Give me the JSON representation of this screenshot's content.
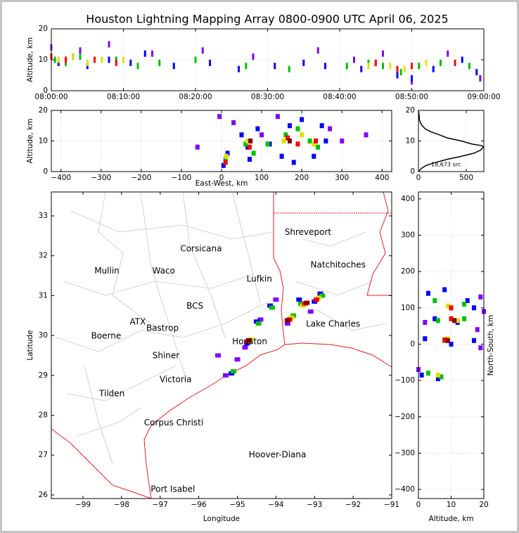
{
  "chart_data": [
    {
      "type": "scatter",
      "title": "Houston Lightning Mapping Array 0800-0900 UTC April 06, 2025",
      "ylabel": "Altitude, km",
      "xlim": [
        0,
        60
      ],
      "ylim": [
        0,
        20
      ],
      "xticks": [
        {
          "value": 0,
          "label": "08:00:00"
        },
        {
          "value": 10,
          "label": "08:10:00"
        },
        {
          "value": 20,
          "label": "08:20:00"
        },
        {
          "value": 30,
          "label": "08:30:00"
        },
        {
          "value": 40,
          "label": "08:40:00"
        },
        {
          "value": 50,
          "label": "08:50:00"
        },
        {
          "value": 60,
          "label": "09:00:00"
        }
      ],
      "yticks": [
        0,
        10,
        20
      ],
      "grid": true,
      "series": [
        {
          "color": "#8000ff",
          "x": [
            0,
            4,
            8,
            14,
            21,
            28,
            37,
            42,
            46,
            50,
            55,
            59.5
          ],
          "y": [
            14,
            13,
            15,
            12,
            13,
            11,
            13,
            10,
            12,
            3,
            12,
            4
          ]
        },
        {
          "color": "#0000ff",
          "x": [
            1,
            3,
            5,
            8,
            11,
            13,
            17,
            22,
            26,
            31,
            35,
            38,
            43,
            45,
            48,
            50,
            53,
            57,
            59
          ],
          "y": [
            9,
            11,
            8,
            10,
            9,
            12,
            8,
            9,
            7,
            8,
            9,
            8,
            7,
            9,
            5,
            4,
            7,
            10,
            6
          ]
        },
        {
          "color": "#00c000",
          "x": [
            0.5,
            2,
            4,
            6,
            9,
            12,
            15,
            20,
            27,
            33,
            41,
            44,
            46,
            48.5,
            51,
            54,
            58
          ],
          "y": [
            10,
            9,
            11,
            10,
            10,
            8,
            9,
            10,
            8,
            7,
            8,
            9,
            8,
            6,
            8,
            9,
            8
          ]
        },
        {
          "color": "#e0e000",
          "x": [
            1,
            3,
            5,
            7,
            10,
            44,
            47,
            49,
            52
          ],
          "y": [
            10,
            11,
            9,
            10,
            10,
            8,
            8,
            7,
            9
          ]
        },
        {
          "color": "#ff0000",
          "x": [
            0,
            2,
            6,
            9,
            45,
            48,
            50,
            56
          ],
          "y": [
            11,
            10,
            10,
            9,
            9,
            7,
            8,
            9
          ]
        }
      ]
    },
    {
      "type": "scatter",
      "xlabel": "East-West, km",
      "ylabel": "Altitude, km",
      "xlim": [
        -424,
        424
      ],
      "ylim": [
        0,
        20
      ],
      "xticks": [
        {
          "value": -400,
          "label": "−400"
        },
        {
          "value": -300,
          "label": "−300"
        },
        {
          "value": -200,
          "label": "−200"
        },
        {
          "value": -100,
          "label": "−100"
        },
        0,
        100,
        200,
        300,
        400
      ],
      "yticks": [
        0,
        10,
        20
      ],
      "grid": true,
      "series": [
        {
          "color": "#8000ff",
          "x": [
            -5,
            30,
            100,
            140,
            270,
            300,
            -60,
            360
          ],
          "y": [
            18,
            16,
            12,
            18,
            14,
            10,
            8,
            12
          ]
        },
        {
          "color": "#0000ff",
          "x": [
            5,
            15,
            50,
            70,
            90,
            120,
            150,
            170,
            200,
            230,
            250,
            260,
            180,
            65
          ],
          "y": [
            2,
            6,
            12,
            4,
            14,
            9,
            5,
            15,
            17,
            5,
            15,
            10,
            3,
            8
          ]
        },
        {
          "color": "#00c000",
          "x": [
            10,
            60,
            80,
            115,
            160,
            190,
            220,
            240
          ],
          "y": [
            4,
            9,
            6,
            9,
            12,
            14,
            10,
            8
          ]
        },
        {
          "color": "#e0e000",
          "x": [
            12,
            65,
            155,
            200,
            230
          ],
          "y": [
            5,
            10,
            10,
            12,
            9
          ]
        },
        {
          "color": "#ff0000",
          "x": [
            10,
            70,
            165,
            190,
            235
          ],
          "y": [
            3,
            8,
            11,
            9,
            10
          ]
        },
        {
          "color": "#800000",
          "x": [
            72,
            170
          ],
          "y": [
            10,
            10
          ]
        }
      ]
    },
    {
      "type": "line",
      "annotation": "18,673 src",
      "xlim": [
        0,
        684
      ],
      "ylim": [
        0,
        20
      ],
      "xticks": [
        0,
        500
      ],
      "yticks": [
        0,
        10,
        20
      ],
      "grid": true,
      "color": "#000000",
      "x": [
        0,
        30,
        80,
        180,
        300,
        450,
        580,
        650,
        680,
        660,
        560,
        450,
        300,
        220,
        130,
        70,
        40,
        20,
        10,
        8,
        5,
        0
      ],
      "y": [
        0,
        1,
        2,
        3,
        4,
        5,
        6,
        7,
        8,
        8.5,
        9,
        10,
        11,
        12,
        13,
        14,
        15,
        16,
        17,
        18,
        19,
        20
      ]
    },
    {
      "type": "map",
      "xlabel": "Longitude",
      "ylabel": "Latitude",
      "xlim": [
        -99.82,
        -91
      ],
      "ylim": [
        25.91,
        33.6
      ],
      "xticks": [
        {
          "value": -99,
          "label": "−99"
        },
        {
          "value": -98,
          "label": "−98"
        },
        {
          "value": -97,
          "label": "−97"
        },
        {
          "value": -96,
          "label": "−96"
        },
        {
          "value": -95,
          "label": "−95"
        },
        {
          "value": -94,
          "label": "−94"
        },
        {
          "value": -93,
          "label": "−93"
        },
        {
          "value": -92,
          "label": "−92"
        },
        {
          "value": -91,
          "label": "−91"
        }
      ],
      "yticks": [
        26,
        27,
        28,
        29,
        30,
        31,
        32,
        33
      ],
      "grid": false,
      "annotations": [
        {
          "text": "Shreveport",
          "x": -93.17,
          "y": 32.59,
          "color": "#000000"
        },
        {
          "text": "Corsicana",
          "x": -95.94,
          "y": 32.17,
          "color": "#000000"
        },
        {
          "text": "Natchitoches",
          "x": -92.39,
          "y": 31.77,
          "color": "#000000"
        },
        {
          "text": "Mullin",
          "x": -98.38,
          "y": 31.62,
          "color": "#f08030"
        },
        {
          "text": "Waco",
          "x": -96.91,
          "y": 31.62,
          "color": "#000000"
        },
        {
          "text": "Lufkin",
          "x": -94.43,
          "y": 31.41,
          "color": "#000000"
        },
        {
          "text": "BCS",
          "x": -96.1,
          "y": 30.73,
          "color": "#800000"
        },
        {
          "text": "ATX",
          "x": -97.58,
          "y": 30.34,
          "color": "#f08030"
        },
        {
          "text": "Bastrop",
          "x": -96.94,
          "y": 30.18,
          "color": "#000000"
        },
        {
          "text": "Lake Charles",
          "x": -92.52,
          "y": 30.28,
          "color": "#000000"
        },
        {
          "text": "Boerne",
          "x": -98.4,
          "y": 29.98,
          "color": "#000000"
        },
        {
          "text": "Houston",
          "x": -94.68,
          "y": 29.84,
          "color": "#f0a030"
        },
        {
          "text": "Shiner",
          "x": -96.85,
          "y": 29.49,
          "color": "#000000"
        },
        {
          "text": "Victoria",
          "x": -96.6,
          "y": 28.89,
          "color": "#000000"
        },
        {
          "text": "Tilden",
          "x": -98.25,
          "y": 28.54,
          "color": "#000000"
        },
        {
          "text": "Corpus Christi",
          "x": -96.65,
          "y": 27.81,
          "color": "#000000"
        },
        {
          "text": "Hoover-Diana",
          "x": -93.96,
          "y": 27.0,
          "color": "#0000ff"
        },
        {
          "text": "Port Isabel",
          "x": -96.67,
          "y": 26.14,
          "color": "#000000"
        }
      ],
      "series": [
        {
          "color": "#8000ff",
          "x": [
            -95.3,
            -95.0,
            -94.8,
            -94.4,
            -94.0,
            -93.7,
            -93.1,
            -92.8,
            -95.5
          ],
          "y": [
            29.0,
            29.4,
            29.7,
            30.4,
            30.9,
            30.3,
            30.6,
            31.0,
            29.5
          ]
        },
        {
          "color": "#0000ff",
          "x": [
            -95.15,
            -94.75,
            -94.5,
            -94.15,
            -93.65,
            -93.4,
            -93.0,
            -92.85
          ],
          "y": [
            29.05,
            29.8,
            30.35,
            30.75,
            30.4,
            30.9,
            30.85,
            31.05
          ]
        },
        {
          "color": "#00c000",
          "x": [
            -95.1,
            -94.7,
            -94.45,
            -94.1,
            -93.55,
            -93.35,
            -92.95,
            -92.8
          ],
          "y": [
            29.1,
            29.85,
            30.3,
            30.7,
            30.5,
            30.8,
            30.9,
            31.0
          ]
        },
        {
          "color": "#e0e000",
          "x": [
            -94.65,
            -93.6,
            -93.3,
            -92.9
          ],
          "y": [
            29.9,
            30.45,
            30.75,
            30.95
          ]
        },
        {
          "color": "#ff0000",
          "x": [
            -94.75,
            -93.65,
            -93.25,
            -92.95
          ],
          "y": [
            29.85,
            30.4,
            30.8,
            30.9
          ]
        },
        {
          "color": "#800000",
          "x": [
            -94.7,
            -93.7,
            -93.2
          ],
          "y": [
            29.88,
            30.38,
            30.82
          ]
        }
      ]
    },
    {
      "type": "scatter",
      "xlabel": "Altitude, km",
      "ylabel": "North-South, km",
      "xlim": [
        0,
        20
      ],
      "ylim": [
        -425,
        419
      ],
      "xticks": [
        0,
        10,
        20
      ],
      "yticks": [
        {
          "value": -400,
          "label": "−400"
        },
        {
          "value": -300,
          "label": "−300"
        },
        {
          "value": -200,
          "label": "−200"
        },
        {
          "value": -100,
          "label": "−100"
        },
        0,
        100,
        200,
        300,
        400
      ],
      "grid": true,
      "series": [
        {
          "color": "#8000ff",
          "x": [
            18,
            19,
            2,
            19,
            0,
            20
          ],
          "y": [
            40,
            130,
            60,
            -10,
            -70,
            90
          ]
        },
        {
          "color": "#0000ff",
          "x": [
            3,
            8,
            15,
            17,
            5,
            12,
            2,
            10,
            17,
            1,
            6
          ],
          "y": [
            140,
            150,
            120,
            100,
            70,
            60,
            15,
            0,
            10,
            -85,
            -95
          ]
        },
        {
          "color": "#00c000",
          "x": [
            5,
            10,
            14,
            6,
            14,
            8,
            3,
            7
          ],
          "y": [
            120,
            100,
            110,
            65,
            70,
            10,
            -80,
            -90
          ]
        },
        {
          "color": "#e0e000",
          "x": [
            9,
            12,
            9,
            6
          ],
          "y": [
            105,
            65,
            15,
            -85
          ]
        },
        {
          "color": "#ff0000",
          "x": [
            10,
            10,
            8
          ],
          "y": [
            100,
            70,
            12
          ]
        },
        {
          "color": "#800000",
          "x": [
            11,
            9
          ],
          "y": [
            65,
            10
          ]
        }
      ]
    }
  ]
}
